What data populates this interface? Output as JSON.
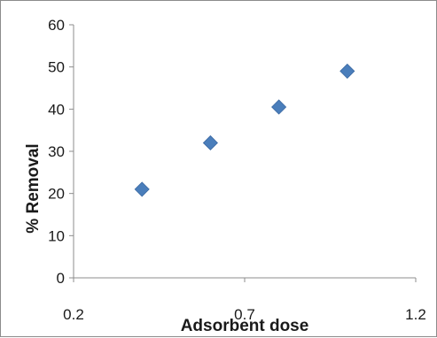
{
  "chart_data": {
    "type": "scatter",
    "title": "",
    "xlabel": "Adsorbent dose",
    "ylabel": "% Removal",
    "xlim": [
      0.2,
      1.2
    ],
    "ylim": [
      0,
      60
    ],
    "xticks": [
      "0.2",
      "0.7",
      "1.2"
    ],
    "yticks": [
      "0",
      "10",
      "20",
      "30",
      "40",
      "50",
      "60"
    ],
    "grid": false,
    "legend": "none",
    "marker": "diamond",
    "color": "#4a7ebb",
    "series": [
      {
        "x": [
          0.4,
          0.6,
          0.8,
          1.0
        ],
        "y": [
          21,
          32,
          40.5,
          49
        ]
      }
    ]
  }
}
